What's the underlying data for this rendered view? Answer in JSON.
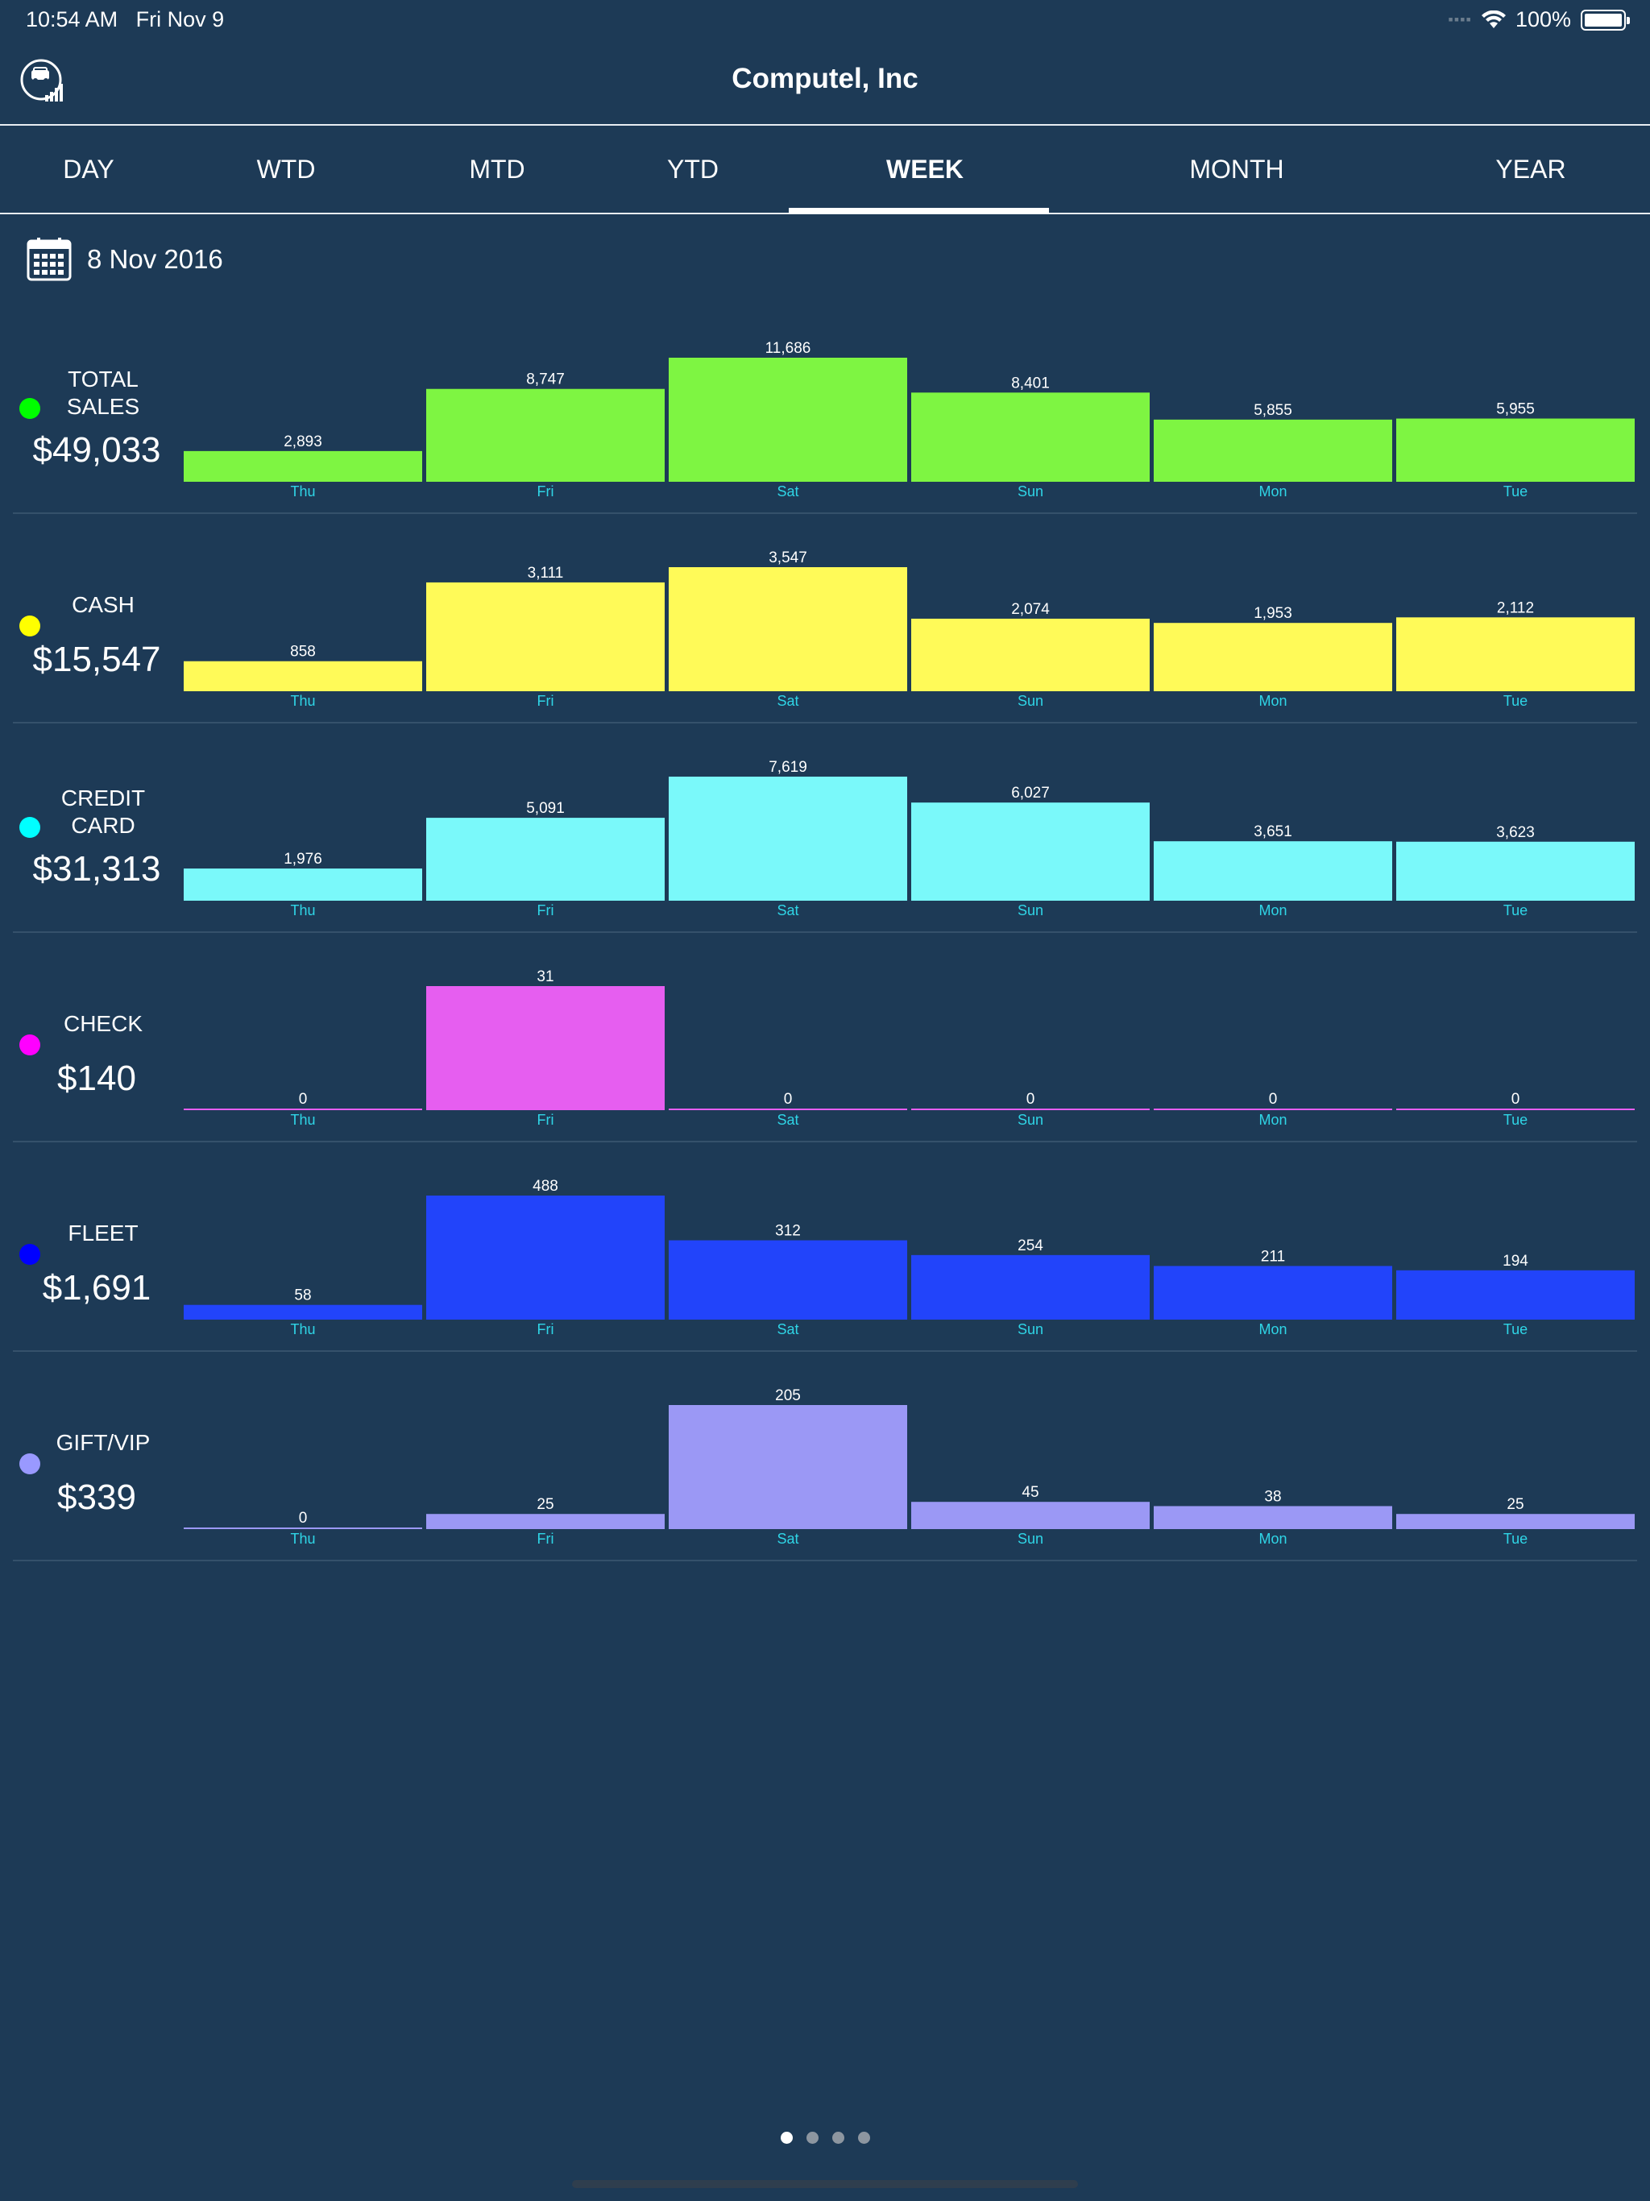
{
  "status_bar": {
    "time": "10:54 AM",
    "day": "Fri Nov 9",
    "battery": "100%"
  },
  "header": {
    "title": "Computel, Inc"
  },
  "tabs": [
    {
      "label": "DAY",
      "active": false
    },
    {
      "label": "WTD",
      "active": false
    },
    {
      "label": "MTD",
      "active": false
    },
    {
      "label": "YTD",
      "active": false
    },
    {
      "label": "WEEK",
      "active": true
    },
    {
      "label": "MONTH",
      "active": false
    },
    {
      "label": "YEAR",
      "active": false
    }
  ],
  "date": "8 Nov 2016",
  "pager": {
    "pages": 4,
    "current": 0
  },
  "chart_data": [
    {
      "type": "bar",
      "name": "TOTAL SALES",
      "label_lines": [
        "TOTAL",
        "SALES"
      ],
      "total": "$49,033",
      "color": "#7ef542",
      "dot_color": "#00ff00",
      "categories": [
        "Thu",
        "Fri",
        "Sat",
        "Sun",
        "Mon",
        "Tue"
      ],
      "values": [
        2893,
        8747,
        11686,
        8401,
        5855,
        5955
      ],
      "value_labels": [
        "2,893",
        "8,747",
        "11,686",
        "8,401",
        "5,855",
        "5,955"
      ]
    },
    {
      "type": "bar",
      "name": "CASH",
      "label_lines": [
        "CASH"
      ],
      "total": "$15,547",
      "color": "#fffa58",
      "dot_color": "#ffff00",
      "categories": [
        "Thu",
        "Fri",
        "Sat",
        "Sun",
        "Mon",
        "Tue"
      ],
      "values": [
        858,
        3111,
        3547,
        2074,
        1953,
        2112
      ],
      "value_labels": [
        "858",
        "3,111",
        "3,547",
        "2,074",
        "1,953",
        "2,112"
      ]
    },
    {
      "type": "bar",
      "name": "CREDIT CARD",
      "label_lines": [
        "CREDIT",
        "CARD"
      ],
      "total": "$31,313",
      "color": "#7af9fa",
      "dot_color": "#00ffff",
      "categories": [
        "Thu",
        "Fri",
        "Sat",
        "Sun",
        "Mon",
        "Tue"
      ],
      "values": [
        1976,
        5091,
        7619,
        6027,
        3651,
        3623
      ],
      "value_labels": [
        "1,976",
        "5,091",
        "7,619",
        "6,027",
        "3,651",
        "3,623"
      ]
    },
    {
      "type": "bar",
      "name": "CHECK",
      "label_lines": [
        "CHECK"
      ],
      "total": "$140",
      "color": "#e65ef0",
      "dot_color": "#ff00ff",
      "categories": [
        "Thu",
        "Fri",
        "Sat",
        "Sun",
        "Mon",
        "Tue"
      ],
      "values": [
        0,
        31,
        0,
        0,
        0,
        0
      ],
      "value_labels": [
        "0",
        "31",
        "0",
        "0",
        "0",
        "0"
      ]
    },
    {
      "type": "bar",
      "name": "FLEET",
      "label_lines": [
        "FLEET"
      ],
      "total": "$1,691",
      "color": "#2244fa",
      "dot_color": "#0000ff",
      "categories": [
        "Thu",
        "Fri",
        "Sat",
        "Sun",
        "Mon",
        "Tue"
      ],
      "values": [
        58,
        488,
        312,
        254,
        211,
        194
      ],
      "value_labels": [
        "58",
        "488",
        "312",
        "254",
        "211",
        "194"
      ]
    },
    {
      "type": "bar",
      "name": "GIFT/VIP",
      "label_lines": [
        "GIFT/VIP"
      ],
      "total": "$339",
      "color": "#9b98f5",
      "dot_color": "#9999ff",
      "categories": [
        "Thu",
        "Fri",
        "Sat",
        "Sun",
        "Mon",
        "Tue"
      ],
      "values": [
        0,
        25,
        205,
        45,
        38,
        25
      ],
      "value_labels": [
        "0",
        "25",
        "205",
        "45",
        "38",
        "25"
      ]
    }
  ],
  "colors": {
    "background": "#1d3a56",
    "axis_label": "#2fd5e6",
    "value_label": "#ffffff",
    "divider": "#35516b"
  }
}
